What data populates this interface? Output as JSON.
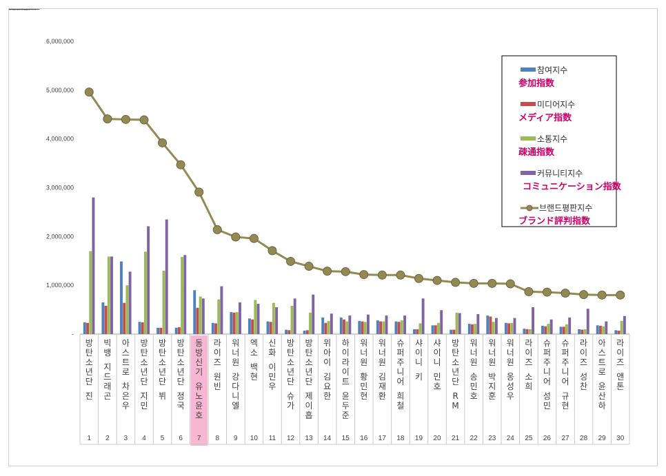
{
  "chart_data": {
    "type": "bar",
    "categories": [
      "방탄소년단 진",
      "빅뱅 지드래곤",
      "아스트로 차은우",
      "방탄소년단 지민",
      "방탄소년단 뷔",
      "방탄소년단 정국",
      "동방신기 유노윤호",
      "라이즈 원빈",
      "워너원 강다니엘",
      "엑소 백현",
      "신화 이민우",
      "방탄소년단 슈가",
      "방탄소년단 제이홉",
      "위아이 김요한",
      "하이라이트 윤두준",
      "워너원 황민현",
      "워너원 김재환",
      "슈퍼주니어 희철",
      "샤이니 키",
      "샤이니 민호",
      "방탄소년단 RM",
      "워너원 송민호",
      "워너원 박지훈",
      "워너원 옹성우",
      "라이즈 소희",
      "슈퍼주니어 성민",
      "슈퍼주니어 규현",
      "라이즈 성찬",
      "아스트로 윤산하",
      "라이즈 앤톤"
    ],
    "ranks": [
      "1",
      "2",
      "3",
      "4",
      "5",
      "6",
      "7",
      "8",
      "9",
      "10",
      "11",
      "12",
      "13",
      "14",
      "15",
      "16",
      "17",
      "18",
      "19",
      "20",
      "21",
      "22",
      "23",
      "24",
      "25",
      "26",
      "27",
      "28",
      "29",
      "30"
    ],
    "highlight_index": 6,
    "series": [
      {
        "name": "참여지수",
        "name_jp": "参加指数",
        "color": "#4f81bd",
        "values": [
          240000,
          650000,
          1490000,
          250000,
          130000,
          130000,
          900000,
          230000,
          450000,
          320000,
          260000,
          90000,
          70000,
          340000,
          340000,
          270000,
          280000,
          260000,
          100000,
          180000,
          90000,
          210000,
          380000,
          230000,
          110000,
          170000,
          150000,
          100000,
          180000,
          80000
        ]
      },
      {
        "name": "미디어지수",
        "name_jp": "メディア指数",
        "color": "#c0504d",
        "values": [
          230000,
          580000,
          640000,
          240000,
          130000,
          140000,
          540000,
          220000,
          440000,
          300000,
          250000,
          80000,
          80000,
          230000,
          300000,
          260000,
          260000,
          250000,
          100000,
          180000,
          90000,
          200000,
          360000,
          220000,
          100000,
          160000,
          150000,
          90000,
          170000,
          70000
        ]
      },
      {
        "name": "소통지수",
        "name_jp": "疎通指数",
        "color": "#9bbb59",
        "values": [
          1700000,
          1590000,
          1000000,
          1690000,
          1300000,
          1580000,
          770000,
          710000,
          450000,
          700000,
          640000,
          580000,
          440000,
          270000,
          260000,
          250000,
          260000,
          280000,
          220000,
          230000,
          440000,
          210000,
          250000,
          230000,
          100000,
          210000,
          200000,
          100000,
          160000,
          270000
        ]
      },
      {
        "name": "커뮤니티지수",
        "name_jp": "コミュニケーション指数",
        "color": "#8064a2",
        "values": [
          2800000,
          1590000,
          1280000,
          2210000,
          2350000,
          1620000,
          730000,
          980000,
          650000,
          620000,
          550000,
          730000,
          810000,
          420000,
          380000,
          400000,
          380000,
          380000,
          730000,
          490000,
          430000,
          410000,
          330000,
          330000,
          550000,
          300000,
          340000,
          520000,
          260000,
          370000
        ]
      },
      {
        "name": "브랜드평판지수",
        "name_jp": "ブランド評判指数",
        "color": "#938953",
        "kind": "line",
        "values": [
          4960000,
          4410000,
          4400000,
          4390000,
          3920000,
          3470000,
          2910000,
          2140000,
          1990000,
          1960000,
          1710000,
          1490000,
          1390000,
          1290000,
          1280000,
          1220000,
          1210000,
          1210000,
          1140000,
          1100000,
          1060000,
          1040000,
          1040000,
          1030000,
          870000,
          860000,
          840000,
          810000,
          800000,
          800000
        ]
      }
    ],
    "ylim": [
      0,
      6000000
    ],
    "yticks": [
      "-",
      "1,000,000",
      "2,000,000",
      "3,000,000",
      "4,000,000",
      "5,000,000",
      "6,000,000"
    ],
    "legend_position": "top-right",
    "grid": false
  }
}
